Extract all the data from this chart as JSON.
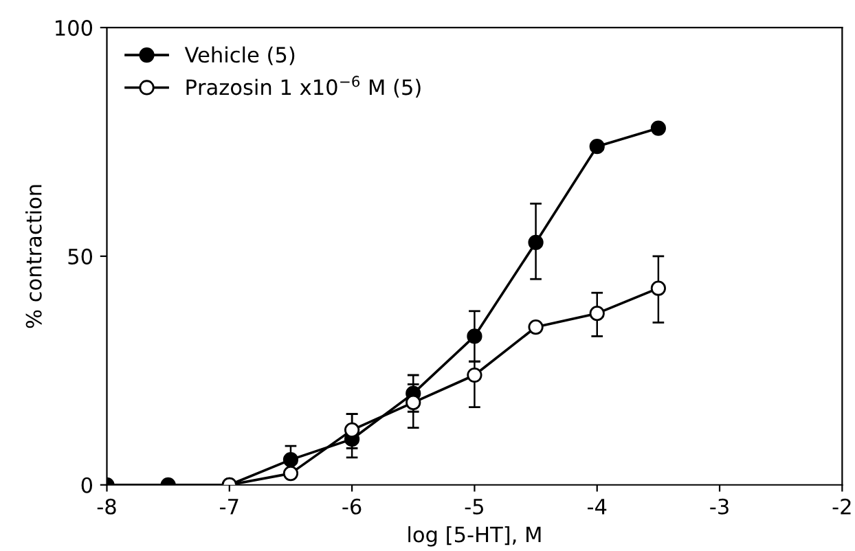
{
  "chart_data": {
    "type": "line",
    "xlabel": "log [5-HT], M",
    "ylabel": "% contraction",
    "xlim": [
      -8,
      -2
    ],
    "xticks": [
      -8,
      -7,
      -6,
      -5,
      -4,
      -3,
      -2
    ],
    "ylim": [
      0,
      100
    ],
    "yticks": [
      0,
      50,
      100
    ],
    "legend": "top left",
    "marker": "circle",
    "grid": false,
    "series": [
      {
        "name": "Vehicle (5)",
        "color": "#000000",
        "x": [
          -8,
          -7.5,
          -7,
          -6.5,
          -6,
          -5.5,
          -5,
          -4.5,
          -4,
          -3.5
        ],
        "values": [
          0,
          0,
          0,
          5.5,
          10,
          20,
          32.5,
          53,
          74,
          78
        ],
        "errors": [
          null,
          null,
          null,
          3,
          [
            6,
            15.5
          ],
          [
            16,
            24
          ],
          [
            27,
            38
          ],
          [
            45,
            61.5
          ],
          null,
          null
        ]
      },
      {
        "name": "Prazosin 1 x10$^{−6}$ M (5)",
        "color": "#ffffff",
        "x": [
          -7,
          -6.5,
          -6,
          -5.5,
          -5,
          -4.5,
          -4,
          -3.5
        ],
        "values": [
          0,
          2.5,
          12,
          18,
          24,
          34.5,
          37.5,
          43
        ],
        "errors": [
          null,
          null,
          [
            8,
            15.5
          ],
          [
            12.5,
            22
          ],
          [
            17,
            27
          ],
          null,
          [
            32.5,
            42
          ],
          [
            35.5,
            50
          ]
        ]
      }
    ]
  }
}
